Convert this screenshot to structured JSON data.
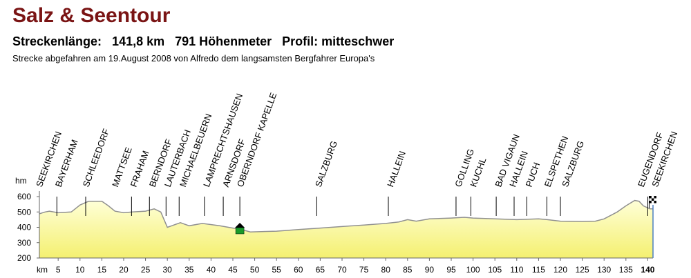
{
  "chart_data": {
    "type": "area",
    "title": "Salz & Seentour",
    "stats": "Streckenlänge:   141,8 km   791 Höhenmeter   Profil: mitteschwer",
    "subtitle": "Strecke abgefahren am 19.August 2008 von Alfredo dem langsamsten Bergfahrer Europa's",
    "y_unit": "hm",
    "x_unit": "km",
    "color": "#909090",
    "x": [
      0.7,
      2,
      3,
      5,
      8,
      10,
      12,
      15,
      16.5,
      18,
      20,
      22,
      25,
      27,
      28.5,
      30,
      31,
      33,
      35,
      38,
      42,
      45,
      47,
      49,
      55,
      60,
      65,
      70,
      75,
      80,
      83,
      85,
      87,
      90,
      95,
      98,
      100,
      105,
      110,
      115,
      117,
      120,
      125,
      128,
      130,
      133,
      135,
      137,
      138,
      139,
      140.5,
      141.2
    ],
    "values": [
      488,
      500,
      505,
      495,
      500,
      545,
      570,
      570,
      540,
      505,
      495,
      500,
      505,
      520,
      500,
      400,
      410,
      430,
      410,
      425,
      410,
      395,
      385,
      370,
      375,
      385,
      395,
      405,
      415,
      425,
      435,
      450,
      440,
      455,
      460,
      465,
      460,
      455,
      450,
      455,
      450,
      440,
      438,
      440,
      455,
      500,
      540,
      575,
      570,
      540,
      520,
      520
    ],
    "xlim": [
      0.7,
      141.2
    ],
    "ylim": [
      200,
      600
    ],
    "yticks": [
      200,
      300,
      400,
      500,
      600
    ],
    "xticks": [
      5,
      10,
      15,
      20,
      25,
      30,
      35,
      40,
      45,
      50,
      55,
      60,
      65,
      70,
      75,
      80,
      85,
      90,
      95,
      100,
      105,
      110,
      115,
      120,
      125,
      130,
      135,
      140
    ],
    "markers": [
      4.7,
      11.3,
      21.8,
      25.9,
      29.7,
      32.7,
      38.5,
      42.8,
      46.6,
      64.2,
      80.6,
      96.1,
      99.5,
      105.3,
      109.4,
      112.3,
      116.9,
      120,
      140
    ],
    "places": [
      {
        "name": "SEEKIRCHEN",
        "km": 0.6
      },
      {
        "name": "BAYERHAM",
        "km": 5
      },
      {
        "name": "SCHLEEDORF",
        "km": 11.3
      },
      {
        "name": "MATTSEE",
        "km": 18
      },
      {
        "name": "FRAHAM",
        "km": 22.2
      },
      {
        "name": "BERNDORF",
        "km": 26.5
      },
      {
        "name": "LAUTERBACH",
        "km": 30
      },
      {
        "name": "MICHAELBEUERN",
        "km": 33.5
      },
      {
        "name": "LAMPRECHTSHAUSEN",
        "km": 38.9
      },
      {
        "name": "ARNSDORF",
        "km": 43.3
      },
      {
        "name": "OBERNDORF KAPELLE",
        "km": 46.6
      },
      {
        "name": "SALZBURG",
        "km": 64.5
      },
      {
        "name": "HALLEIN",
        "km": 81
      },
      {
        "name": "GOLLING",
        "km": 96.5
      },
      {
        "name": "KUCHL",
        "km": 100
      },
      {
        "name": "BAD VIGAUN",
        "km": 105.7
      },
      {
        "name": "HALLEIN",
        "km": 109
      },
      {
        "name": "PUCH",
        "km": 112.7
      },
      {
        "name": "ELSPETHEN",
        "km": 117
      },
      {
        "name": "SALZBURG",
        "km": 121
      },
      {
        "name": "EUGENDORF",
        "km": 138.4
      },
      {
        "name": "SEEKIRCHEN",
        "km": 141.6
      }
    ]
  }
}
